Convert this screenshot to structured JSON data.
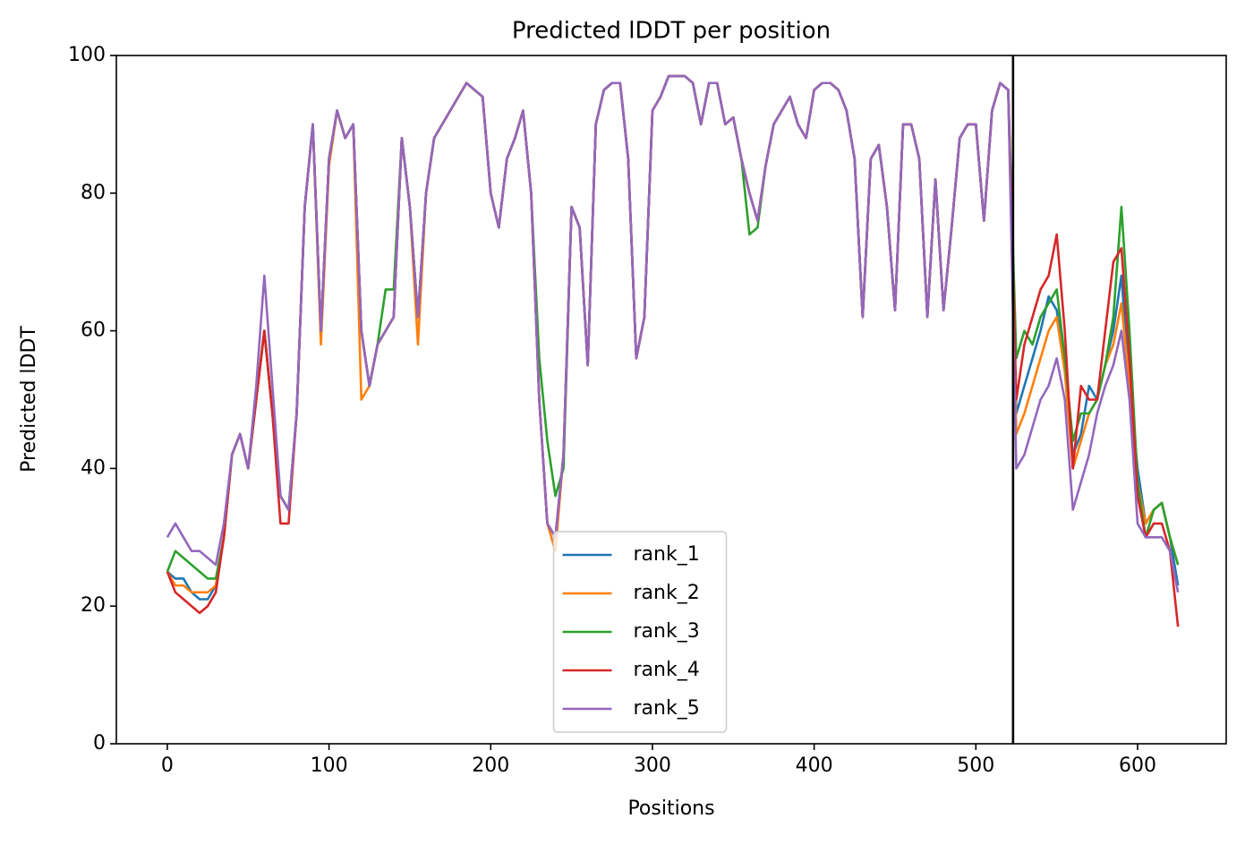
{
  "chart_data": {
    "type": "line",
    "title": "Predicted lDDT per position",
    "x_label": "Positions",
    "y_label": "Predicted lDDT",
    "x": [
      0,
      5,
      10,
      15,
      20,
      25,
      30,
      35,
      40,
      45,
      50,
      55,
      60,
      65,
      70,
      75,
      80,
      85,
      90,
      95,
      100,
      105,
      110,
      115,
      120,
      125,
      130,
      135,
      140,
      145,
      150,
      155,
      160,
      165,
      170,
      175,
      180,
      185,
      190,
      195,
      200,
      205,
      210,
      215,
      220,
      225,
      230,
      235,
      240,
      245,
      250,
      255,
      260,
      265,
      270,
      275,
      280,
      285,
      290,
      295,
      300,
      305,
      310,
      315,
      320,
      325,
      330,
      335,
      340,
      345,
      350,
      355,
      360,
      365,
      370,
      375,
      380,
      385,
      390,
      395,
      400,
      405,
      410,
      415,
      420,
      425,
      430,
      435,
      440,
      445,
      450,
      455,
      460,
      465,
      470,
      475,
      480,
      485,
      490,
      495,
      500,
      505,
      510,
      515,
      520,
      525,
      530,
      535,
      540,
      545,
      550,
      555,
      560,
      565,
      570,
      575,
      580,
      585,
      590,
      595,
      600,
      605,
      610,
      615,
      620,
      625
    ],
    "series": [
      {
        "name": "rank_1",
        "color": "#1f77b4",
        "values": [
          25,
          24,
          24,
          22,
          21,
          21,
          23,
          30,
          42,
          45,
          40,
          50,
          60,
          48,
          36,
          34,
          48,
          78,
          90,
          60,
          85,
          92,
          88,
          90,
          60,
          52,
          58,
          60,
          62,
          88,
          78,
          62,
          80,
          88,
          90,
          92,
          94,
          96,
          95,
          94,
          80,
          75,
          85,
          88,
          92,
          80,
          50,
          32,
          30,
          42,
          78,
          75,
          55,
          90,
          95,
          96,
          96,
          85,
          56,
          62,
          92,
          94,
          97,
          97,
          97,
          96,
          90,
          96,
          96,
          90,
          91,
          85,
          80,
          76,
          84,
          90,
          92,
          94,
          90,
          88,
          95,
          96,
          96,
          95,
          92,
          85,
          62,
          85,
          87,
          78,
          63,
          90,
          90,
          85,
          62,
          82,
          63,
          75,
          88,
          90,
          90,
          76,
          92,
          96,
          95,
          48,
          52,
          56,
          60,
          65,
          63,
          55,
          42,
          45,
          52,
          50,
          55,
          60,
          68,
          52,
          40,
          32,
          34,
          35,
          30,
          23
        ]
      },
      {
        "name": "rank_2",
        "color": "#ff7f0e",
        "values": [
          25,
          23,
          23,
          22,
          22,
          22,
          23,
          30,
          42,
          45,
          40,
          50,
          60,
          48,
          36,
          34,
          48,
          78,
          90,
          58,
          84,
          92,
          88,
          90,
          50,
          52,
          58,
          60,
          62,
          88,
          78,
          58,
          80,
          88,
          90,
          92,
          94,
          96,
          95,
          94,
          80,
          75,
          85,
          88,
          92,
          80,
          50,
          32,
          28,
          42,
          78,
          75,
          55,
          90,
          95,
          96,
          96,
          85,
          56,
          62,
          92,
          94,
          97,
          97,
          97,
          96,
          90,
          96,
          96,
          90,
          91,
          85,
          80,
          76,
          84,
          90,
          92,
          94,
          90,
          88,
          95,
          96,
          96,
          95,
          92,
          85,
          62,
          85,
          87,
          78,
          63,
          90,
          90,
          85,
          62,
          82,
          63,
          75,
          88,
          90,
          90,
          76,
          92,
          96,
          95,
          45,
          48,
          52,
          56,
          60,
          62,
          54,
          40,
          44,
          48,
          50,
          55,
          58,
          64,
          52,
          38,
          32,
          34,
          35,
          30,
          26
        ]
      },
      {
        "name": "rank_3",
        "color": "#2ca02c",
        "values": [
          25,
          28,
          27,
          26,
          25,
          24,
          24,
          30,
          42,
          45,
          40,
          50,
          60,
          48,
          36,
          34,
          48,
          78,
          90,
          60,
          85,
          92,
          88,
          90,
          60,
          52,
          58,
          66,
          66,
          88,
          78,
          62,
          80,
          88,
          90,
          92,
          94,
          96,
          95,
          94,
          80,
          75,
          85,
          88,
          92,
          80,
          56,
          44,
          36,
          40,
          78,
          75,
          55,
          90,
          95,
          96,
          96,
          85,
          56,
          62,
          92,
          94,
          97,
          97,
          97,
          96,
          90,
          96,
          96,
          90,
          91,
          85,
          74,
          75,
          84,
          90,
          92,
          94,
          90,
          88,
          95,
          96,
          96,
          95,
          92,
          85,
          62,
          85,
          87,
          78,
          63,
          90,
          90,
          85,
          62,
          82,
          63,
          75,
          88,
          90,
          90,
          76,
          92,
          96,
          95,
          56,
          60,
          58,
          62,
          64,
          66,
          56,
          44,
          48,
          48,
          50,
          55,
          62,
          78,
          60,
          38,
          30,
          34,
          35,
          30,
          26
        ]
      },
      {
        "name": "rank_4",
        "color": "#d62728",
        "values": [
          25,
          22,
          21,
          20,
          19,
          20,
          22,
          30,
          42,
          45,
          40,
          50,
          60,
          48,
          32,
          32,
          48,
          78,
          90,
          60,
          85,
          92,
          88,
          90,
          60,
          52,
          58,
          60,
          62,
          88,
          78,
          62,
          80,
          88,
          90,
          92,
          94,
          96,
          95,
          94,
          80,
          75,
          85,
          88,
          92,
          80,
          50,
          32,
          30,
          42,
          78,
          75,
          55,
          90,
          95,
          96,
          96,
          85,
          56,
          62,
          92,
          94,
          97,
          97,
          97,
          96,
          90,
          96,
          96,
          90,
          91,
          85,
          80,
          76,
          84,
          90,
          92,
          94,
          90,
          88,
          95,
          96,
          96,
          95,
          92,
          85,
          62,
          85,
          87,
          78,
          63,
          90,
          90,
          85,
          62,
          82,
          63,
          75,
          88,
          90,
          90,
          76,
          92,
          96,
          95,
          50,
          58,
          62,
          66,
          68,
          74,
          60,
          40,
          52,
          50,
          50,
          60,
          70,
          72,
          56,
          36,
          30,
          32,
          32,
          28,
          17
        ]
      },
      {
        "name": "rank_5",
        "color": "#9467bd",
        "values": [
          30,
          32,
          30,
          28,
          28,
          27,
          26,
          32,
          42,
          45,
          40,
          52,
          68,
          52,
          36,
          34,
          48,
          78,
          90,
          60,
          85,
          92,
          88,
          90,
          60,
          52,
          58,
          60,
          62,
          88,
          78,
          62,
          80,
          88,
          90,
          92,
          94,
          96,
          95,
          94,
          80,
          75,
          85,
          88,
          92,
          80,
          50,
          32,
          30,
          42,
          78,
          75,
          55,
          90,
          95,
          96,
          96,
          85,
          56,
          62,
          92,
          94,
          97,
          97,
          97,
          96,
          90,
          96,
          96,
          90,
          91,
          85,
          80,
          76,
          84,
          90,
          92,
          94,
          90,
          88,
          95,
          96,
          96,
          95,
          92,
          85,
          62,
          85,
          87,
          78,
          63,
          90,
          90,
          85,
          62,
          82,
          63,
          75,
          88,
          90,
          90,
          76,
          92,
          96,
          95,
          40,
          42,
          46,
          50,
          52,
          56,
          50,
          34,
          38,
          42,
          48,
          52,
          55,
          60,
          50,
          32,
          30,
          30,
          30,
          28,
          22
        ]
      }
    ],
    "vline": {
      "x": 523,
      "color": "#000000"
    },
    "xlim": [
      -31.5,
      654.8
    ],
    "ylim": [
      0,
      100
    ],
    "xticks": [
      0,
      100,
      200,
      300,
      400,
      500,
      600
    ],
    "yticks": [
      0,
      20,
      40,
      60,
      80,
      100
    ],
    "legend": "lower center",
    "grid": false
  }
}
